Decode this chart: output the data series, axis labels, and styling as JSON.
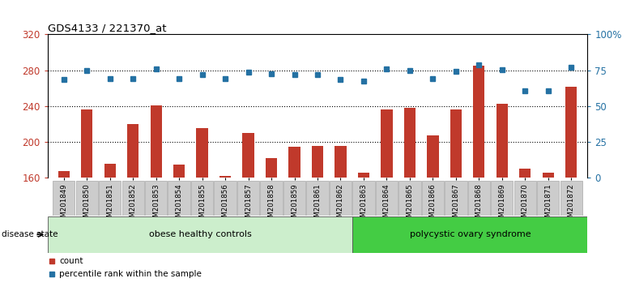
{
  "title": "GDS4133 / 221370_at",
  "samples": [
    "GSM201849",
    "GSM201850",
    "GSM201851",
    "GSM201852",
    "GSM201853",
    "GSM201854",
    "GSM201855",
    "GSM201856",
    "GSM201857",
    "GSM201858",
    "GSM201859",
    "GSM201861",
    "GSM201862",
    "GSM201863",
    "GSM201864",
    "GSM201865",
    "GSM201866",
    "GSM201867",
    "GSM201868",
    "GSM201869",
    "GSM201870",
    "GSM201871",
    "GSM201872"
  ],
  "counts": [
    168,
    236,
    176,
    220,
    241,
    175,
    216,
    162,
    210,
    182,
    195,
    196,
    196,
    166,
    236,
    238,
    207,
    236,
    285,
    243,
    170,
    166,
    262
  ],
  "percentiles_left_scale": [
    270,
    280,
    271,
    271,
    282,
    271,
    275,
    271,
    278,
    276,
    275,
    275,
    270,
    268,
    282,
    280,
    271,
    279,
    286,
    281,
    257,
    257,
    283
  ],
  "group1_label": "obese healthy controls",
  "group2_label": "polycystic ovary syndrome",
  "group1_count": 13,
  "group2_count": 10,
  "ylim_left": [
    160,
    320
  ],
  "ylim_right": [
    0,
    100
  ],
  "yticks_left": [
    160,
    200,
    240,
    280,
    320
  ],
  "yticks_right": [
    0,
    25,
    50,
    75,
    100
  ],
  "yticklabels_right": [
    "0",
    "25",
    "50",
    "75",
    "100%"
  ],
  "bar_color": "#c0392b",
  "dot_color": "#2471a3",
  "group1_bg": "#cceecc",
  "group2_bg": "#44cc44",
  "tick_bg": "#dddddd",
  "disease_state_label": "disease state",
  "legend_count_label": "count",
  "legend_pct_label": "percentile rank within the sample",
  "bar_width": 0.5
}
